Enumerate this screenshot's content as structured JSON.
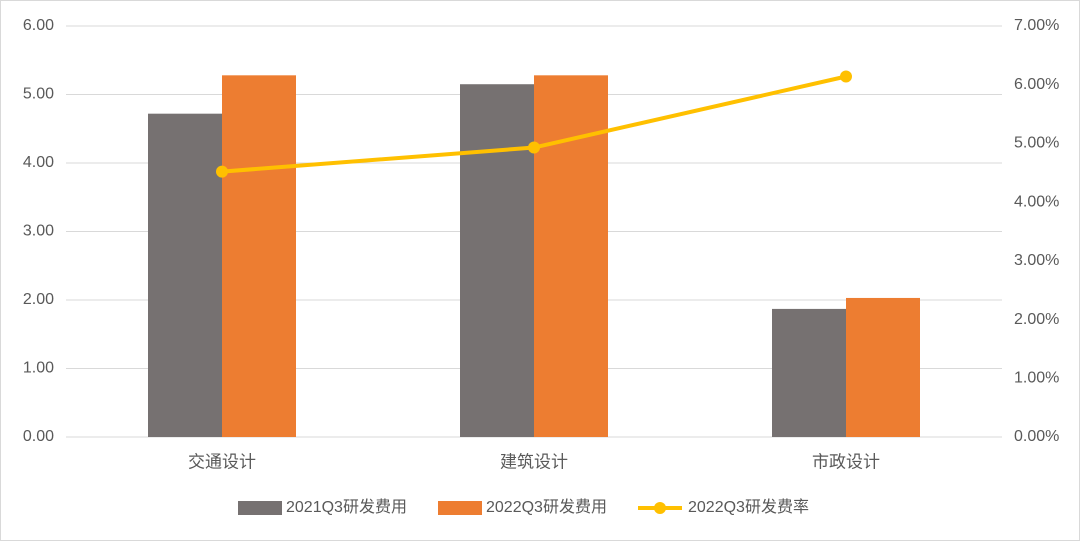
{
  "chart_data": {
    "type": "bar-line",
    "categories": [
      "交通设计",
      "建筑设计",
      "市政设计"
    ],
    "series": [
      {
        "name": "2021Q3研发费用",
        "color": "#767171",
        "values": [
          4.72,
          5.15,
          1.87
        ]
      },
      {
        "name": "2022Q3研发费用",
        "color": "#ed7d31",
        "values": [
          5.28,
          5.28,
          2.03
        ]
      },
      {
        "name": "2022Q3研发费率",
        "color": "#ffc000",
        "values": [
          4.52,
          4.93,
          6.14
        ],
        "axis": "y2",
        "type": "line"
      }
    ],
    "ylim": [
      0,
      6
    ],
    "yticks": [
      {
        "value": 0,
        "label": "0.00"
      },
      {
        "value": 1,
        "label": "1.00"
      },
      {
        "value": 2,
        "label": "2.00"
      },
      {
        "value": 3,
        "label": "3.00"
      },
      {
        "value": 4,
        "label": "4.00"
      },
      {
        "value": 5,
        "label": "5.00"
      },
      {
        "value": 6,
        "label": "6.00"
      }
    ],
    "y2lim": [
      0,
      7
    ],
    "y2ticks": [
      {
        "value": 0,
        "label": "0.00%"
      },
      {
        "value": 1,
        "label": "1.00%"
      },
      {
        "value": 2,
        "label": "2.00%"
      },
      {
        "value": 3,
        "label": "3.00%"
      },
      {
        "value": 4,
        "label": "4.00%"
      },
      {
        "value": 5,
        "label": "5.00%"
      },
      {
        "value": 6,
        "label": "6.00%"
      },
      {
        "value": 7,
        "label": "7.00%"
      }
    ],
    "grid": true,
    "legend": "bottom"
  }
}
